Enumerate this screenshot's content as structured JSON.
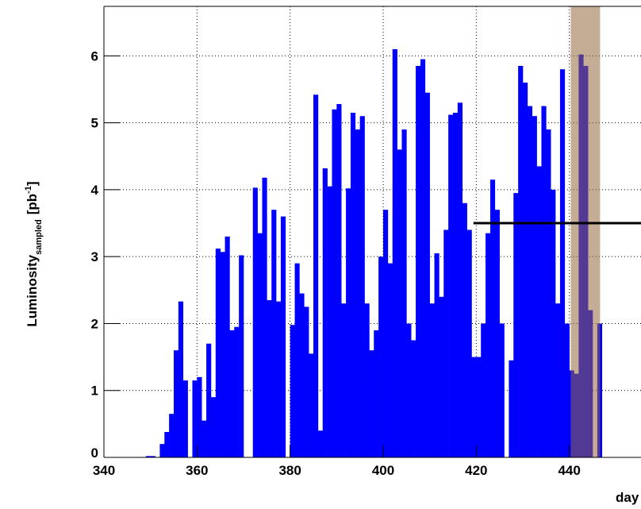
{
  "chart_data": {
    "type": "histogram",
    "xlabel": "day",
    "ylabel": {
      "main": "Luminosity",
      "subscript": "sampled",
      "unit": "[pb",
      "superscript": "-1",
      "close": "]"
    },
    "bins": [
      349,
      350,
      351,
      352,
      353,
      354,
      355,
      356,
      357,
      358,
      359,
      360,
      361,
      362,
      363,
      364,
      365,
      366,
      367,
      368,
      369,
      370,
      371,
      372,
      373,
      374,
      375,
      376,
      377,
      378,
      379,
      380,
      381,
      382,
      383,
      384,
      385,
      386,
      387,
      388,
      389,
      390,
      391,
      392,
      393,
      394,
      395,
      396,
      397,
      398,
      399,
      400,
      401,
      402,
      403,
      404,
      405,
      406,
      407,
      408,
      409,
      410,
      411,
      412,
      413,
      414,
      415,
      416,
      417,
      418,
      419,
      420,
      421,
      422,
      423,
      424,
      425,
      426,
      427,
      428,
      429,
      430,
      431,
      432,
      433,
      434,
      435,
      436,
      437,
      438,
      439,
      440,
      441,
      442,
      443,
      444,
      445,
      446,
      447
    ],
    "values": [
      0.02,
      0.02,
      0,
      0.2,
      0.38,
      0.65,
      1.6,
      2.33,
      1.15,
      0,
      1.15,
      1.2,
      0.55,
      1.7,
      0.9,
      3.12,
      3.07,
      3.3,
      1.9,
      1.95,
      3.02,
      0,
      0,
      4.03,
      3.35,
      4.18,
      2.35,
      3.7,
      2.33,
      3.6,
      0,
      1.98,
      2.9,
      2.45,
      2.25,
      1.55,
      5.42,
      0.4,
      4.32,
      4.05,
      5.2,
      5.28,
      2.3,
      4.02,
      5.15,
      4.9,
      5.1,
      2.3,
      1.6,
      1.9,
      3.0,
      3.7,
      2.9,
      6.1,
      4.6,
      4.9,
      2.0,
      1.75,
      5.85,
      5.95,
      5.45,
      2.3,
      3.05,
      2.4,
      3.4,
      5.12,
      5.15,
      5.3,
      3.8,
      3.4,
      1.5,
      1.5,
      2.0,
      3.35,
      4.15,
      3.7,
      2.0,
      0,
      1.45,
      3.95,
      5.85,
      5.6,
      5.25,
      5.1,
      4.35,
      5.25,
      4.9,
      4.0,
      2.3,
      5.8,
      2.0,
      1.3,
      1.25,
      6.02,
      5.85,
      2.2,
      0,
      2.0
    ],
    "color": "#0000ff",
    "xlim": [
      340,
      460
    ],
    "xticks": [
      340,
      360,
      380,
      400,
      420,
      440
    ],
    "ylim": [
      0,
      6.74
    ],
    "yticks": [
      0,
      1,
      2,
      3,
      4,
      5,
      6
    ],
    "grid": true,
    "band": {
      "x": [
        440.3,
        446.6
      ],
      "color": "#96683c"
    },
    "hline": {
      "y": 3.5,
      "xstart": 419.4,
      "color": "#000000"
    }
  }
}
